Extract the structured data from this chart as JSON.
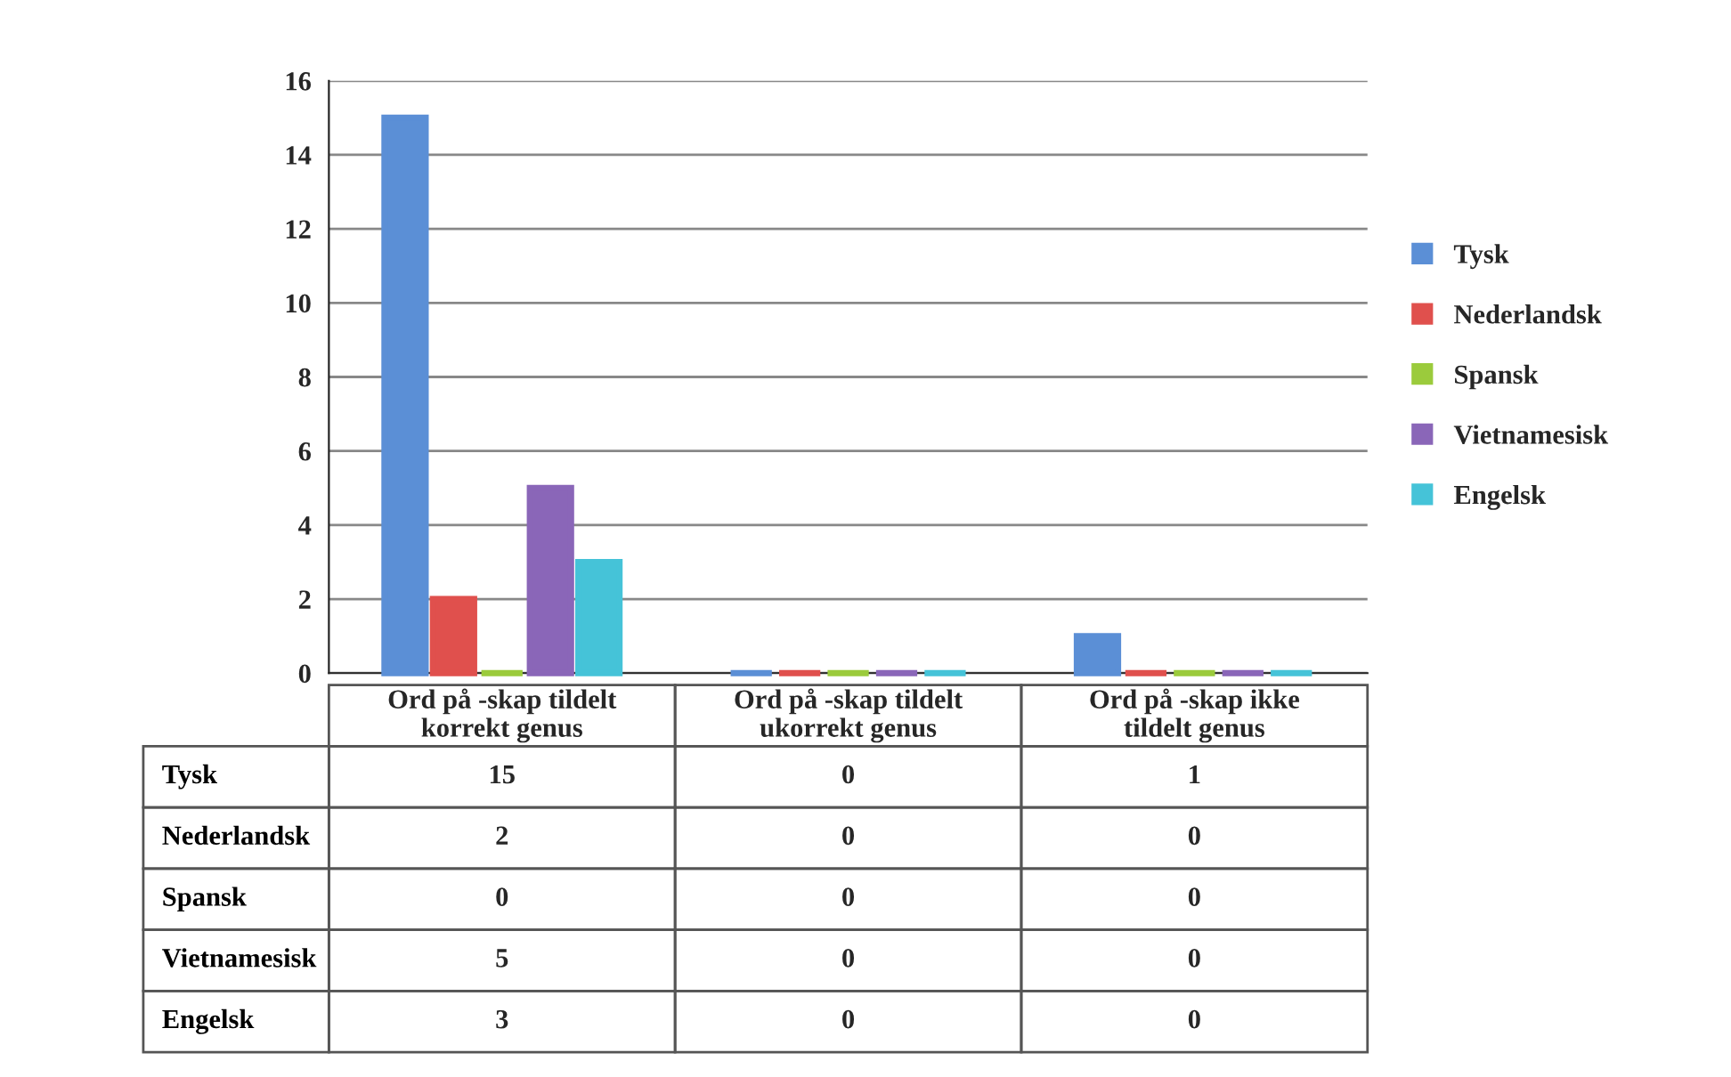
{
  "chart_data": {
    "type": "bar",
    "categories": [
      "Ord på -skap tildelt korrekt genus",
      "Ord på -skap tildelt ukorrekt genus",
      "Ord på -skap ikke tildelt genus"
    ],
    "series": [
      {
        "name": "Tysk",
        "color": "#5b8fd6",
        "values": [
          15,
          0,
          1
        ]
      },
      {
        "name": "Nederlandsk",
        "color": "#e0504d",
        "values": [
          2,
          0,
          0
        ]
      },
      {
        "name": "Spansk",
        "color": "#9bcb3c",
        "values": [
          0,
          0,
          0
        ]
      },
      {
        "name": "Vietnamesisk",
        "color": "#8a66b8",
        "values": [
          5,
          0,
          0
        ]
      },
      {
        "name": "Engelsk",
        "color": "#45c3d8",
        "values": [
          3,
          0,
          0
        ]
      }
    ],
    "ylim": [
      0,
      16
    ],
    "yticks": [
      0,
      2,
      4,
      6,
      8,
      10,
      12,
      14,
      16
    ],
    "grid": "y",
    "legend": "right",
    "data_labels": true
  }
}
